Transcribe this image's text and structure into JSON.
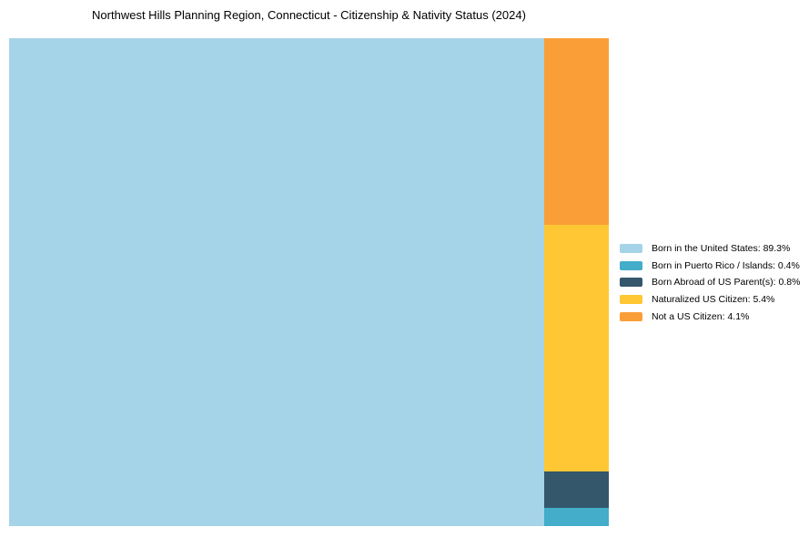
{
  "header": {
    "title": "Northwest Hills Planning Region, Connecticut - Citizenship & Nativity Status (2024)"
  },
  "chart_data": {
    "type": "treemap",
    "title": "Northwest Hills Planning Region, Connecticut - Citizenship & Nativity Status (2024)",
    "unit": "%",
    "slices": [
      {
        "label": "Born in the United States",
        "value": 89.3,
        "color": "#A5D3E8"
      },
      {
        "label": "Born in Puerto Rico / Islands",
        "value": 0.4,
        "color": "#44ADC9"
      },
      {
        "label": "Born Abroad of US Parent(s)",
        "value": 0.8,
        "color": "#34576B"
      },
      {
        "label": "Naturalized US Citizen",
        "value": 5.4,
        "color": "#FEC733"
      },
      {
        "label": "Not a US Citizen",
        "value": 4.1,
        "color": "#FA9F38"
      }
    ],
    "layout": {
      "main_slice": 0,
      "column_order_top_to_bottom": [
        4,
        3,
        2,
        1
      ],
      "legend_position": "right",
      "labels_inside_blocks": false
    }
  },
  "legend": {
    "items": [
      {
        "label": "Born in the United States: 89.3%"
      },
      {
        "label": "Born in Puerto Rico / Islands: 0.4%"
      },
      {
        "label": "Born Abroad of US Parent(s): 0.8%"
      },
      {
        "label": "Naturalized US Citizen: 5.4%"
      },
      {
        "label": "Not a US Citizen: 4.1%"
      }
    ]
  }
}
